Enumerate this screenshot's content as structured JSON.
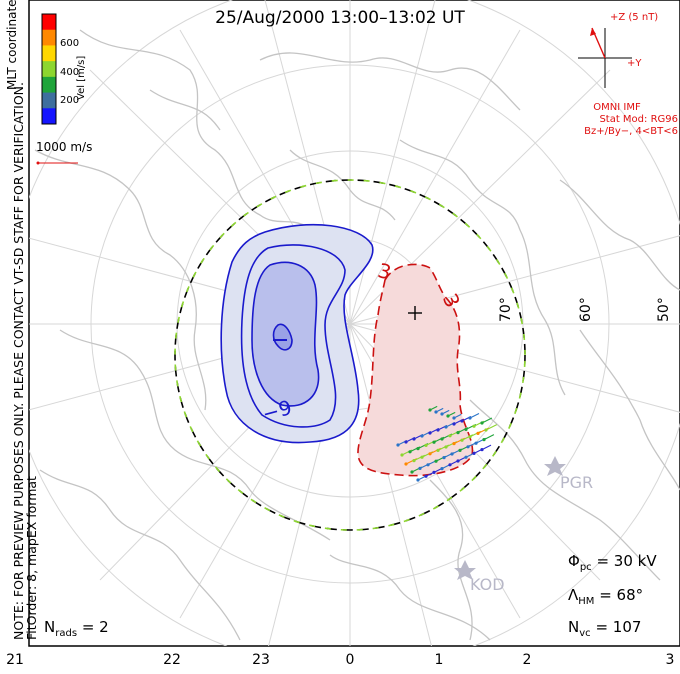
{
  "title": "25/Aug/2000 13:00–13:02 UT",
  "side_text": {
    "preview_note": "NOTE: FOR PREVIEW PURPOSES ONLY. PLEASE CONTACT VT-SD STAFF FOR VERIFICATION.",
    "fit_order": "FitOrder: 8, mapEX format",
    "coordinates": "MLT coordinates"
  },
  "colorbar": {
    "label": "Vel [m/s]",
    "tick_labels": [
      "600",
      "400",
      "200"
    ],
    "colors": [
      "#ff0000",
      "#ff8800",
      "#ffd700",
      "#8dd630",
      "#1fa43a",
      "#3e6f9e",
      "#1515ff"
    ]
  },
  "vector_scale": {
    "label": "1000 m/s",
    "color": "#e01010"
  },
  "imf": {
    "z_label": "+Z (5 nT)",
    "y_label": "+Y",
    "source": "OMNI IMF",
    "model_line1": "Stat Mod: RG96",
    "model_line2": "Bz+/By−, 4<BT<6",
    "color": "#e01010"
  },
  "stations": [
    {
      "name": "PGR",
      "color": "#b8b8c8"
    },
    {
      "name": "KOD",
      "color": "#b8b8c8"
    }
  ],
  "latitude_labels": [
    "70°",
    "60°",
    "50°"
  ],
  "contours": {
    "negative_label": "−9",
    "positive_labels": [
      "3",
      "3"
    ],
    "negative_color": "#1a1acc",
    "positive_color": "#cc1111",
    "negative_fill": "#dde2f2",
    "positive_fill": "#f6dada"
  },
  "boundary": {
    "color_a": "#000000",
    "color_b": "#8dd630"
  },
  "stats": {
    "potential_symbol": "Φ",
    "potential_sub": "pc",
    "potential_value": "= 30 kV",
    "hm_symbol": "Λ",
    "hm_sub": "HM",
    "hm_value": "= 68°",
    "nvc_symbol": "N",
    "nvc_sub": "vc",
    "nvc_value": "= 107",
    "nrads_symbol": "N",
    "nrads_sub": "rads",
    "nrads_value": "= 2"
  },
  "mlt_axis": [
    "21",
    "22",
    "23",
    "0",
    "1",
    "2",
    "3"
  ]
}
